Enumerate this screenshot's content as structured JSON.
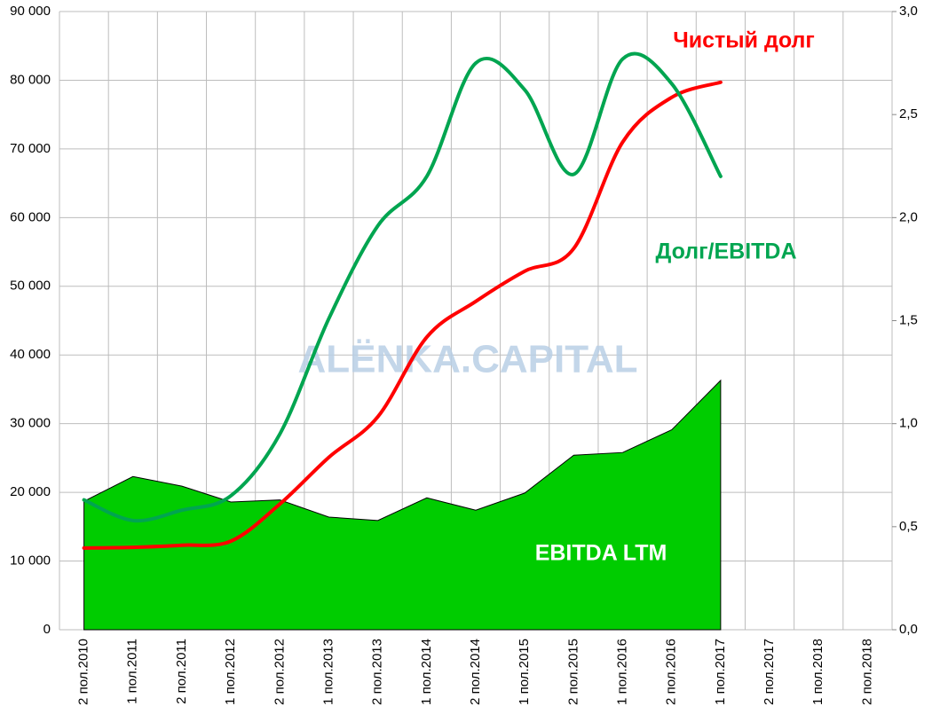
{
  "chart_data": {
    "type": "line",
    "watermark": "ALЁNKA.CAPITAL",
    "categories": [
      "2 пол.2010",
      "1 пол.2011",
      "2 пол.2011",
      "1 пол.2012",
      "2 пол.2012",
      "1 пол.2013",
      "2 пол.2013",
      "1 пол.2014",
      "2 пол.2014",
      "1 пол.2015",
      "2 пол.2015",
      "1 пол.2016",
      "2 пол.2016",
      "1 пол.2017",
      "2 пол.2017",
      "1 пол.2018",
      "2 пол.2018"
    ],
    "series": [
      {
        "name": "EBITDA LTM",
        "type": "area",
        "color": "#00cc00",
        "values": [
          18700,
          22300,
          20900,
          18600,
          18900,
          16400,
          15900,
          19200,
          17400,
          19900,
          25400,
          25800,
          29100,
          36300,
          null,
          null,
          null
        ]
      },
      {
        "name": "Чистый долг",
        "type": "line",
        "color": "#ff0000",
        "values": [
          11900,
          12000,
          12300,
          12900,
          18300,
          25100,
          31000,
          42600,
          47800,
          52200,
          55500,
          71000,
          77500,
          79700,
          null,
          null,
          null
        ]
      },
      {
        "name": "Долг/EBITDA",
        "type": "line",
        "color": "#00a550",
        "axis": "y2",
        "values": [
          0.63,
          0.53,
          0.58,
          0.65,
          0.95,
          1.51,
          1.96,
          2.2,
          2.75,
          2.62,
          2.21,
          2.77,
          2.65,
          2.2,
          null,
          null,
          null
        ]
      }
    ],
    "ylim": [
      0,
      90000
    ],
    "yticks": [
      0,
      {
        "value": 10000,
        "label": "10 000"
      },
      {
        "value": 20000,
        "label": "20 000"
      },
      {
        "value": 30000,
        "label": "30 000"
      },
      {
        "value": 40000,
        "label": "40 000"
      },
      {
        "value": 50000,
        "label": "50 000"
      },
      {
        "value": 60000,
        "label": "60 000"
      },
      {
        "value": 70000,
        "label": "70 000"
      },
      {
        "value": 80000,
        "label": "80 000"
      },
      {
        "value": 90000,
        "label": "90 000"
      }
    ],
    "y2lim": [
      0,
      3
    ],
    "y2ticks": [
      {
        "value": 0,
        "label": "0,0"
      },
      {
        "value": 0.5,
        "label": "0,5"
      },
      {
        "value": 1,
        "label": "1,0"
      },
      {
        "value": 1.5,
        "label": "1,5"
      },
      {
        "value": 2,
        "label": "2,0"
      },
      {
        "value": 2.5,
        "label": "2,5"
      },
      {
        "value": 3,
        "label": "3,0"
      }
    ],
    "grid": true
  }
}
